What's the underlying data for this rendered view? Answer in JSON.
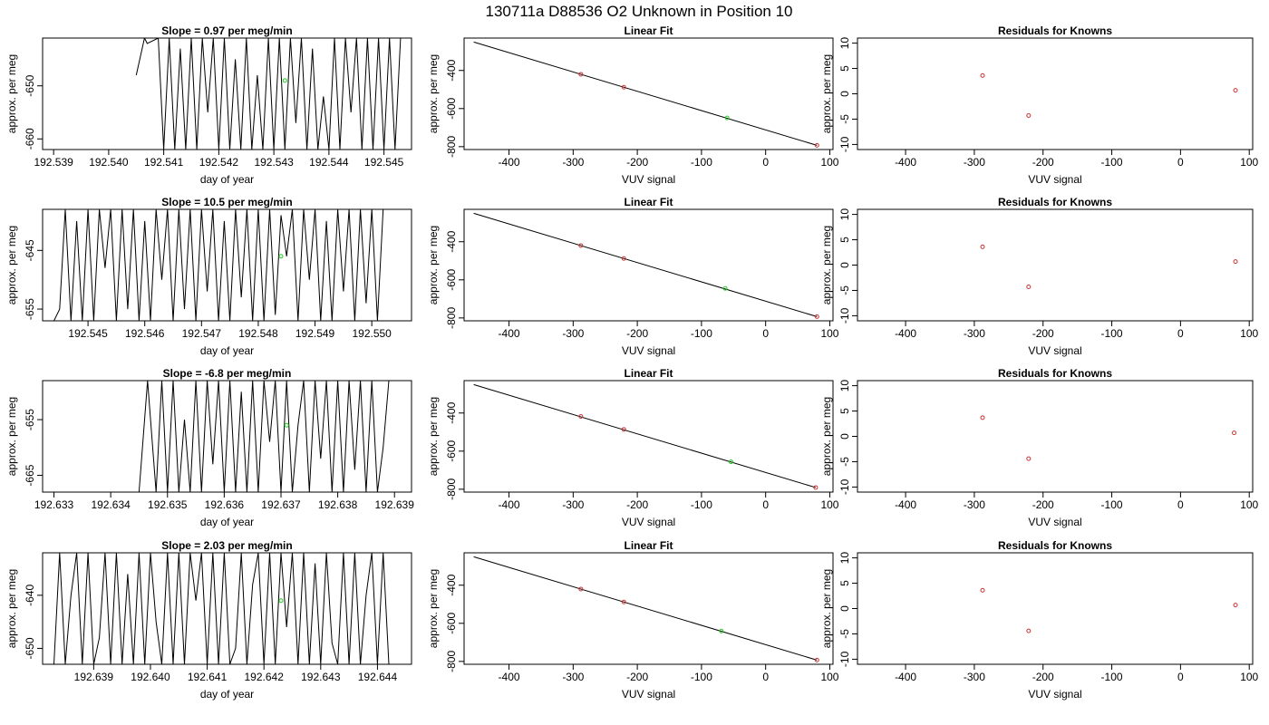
{
  "header": {
    "title": "130711a     D88536   O2 Unknown in Position  10"
  },
  "colors": {
    "trace": "#000000",
    "known_point": "#cc3333",
    "unknown_point": "#22cc22",
    "fit_line": "#000000"
  },
  "chart_data": [
    {
      "type": "line",
      "row": 0,
      "panel": "time-series",
      "title": "Slope =  0.97  per meg/min",
      "xlabel": "day of year",
      "ylabel": "approx. per meg",
      "xlim": [
        192.5388,
        192.5455
      ],
      "ylim": [
        -662,
        -641
      ],
      "xticks": [
        192.539,
        192.54,
        192.541,
        192.542,
        192.543,
        192.544,
        192.545
      ],
      "xtick_labels": [
        "192.539",
        "192.540",
        "192.541",
        "192.542",
        "192.543",
        "192.544",
        "192.545"
      ],
      "yticks": [
        -650,
        -660
      ],
      "ytick_labels": [
        "-650",
        "-660"
      ],
      "trace_x": [
        192.5405,
        192.54065,
        192.5407,
        192.5409,
        192.541,
        192.5411,
        192.5412,
        192.5413,
        192.5414,
        192.5415,
        192.5416,
        192.5417,
        192.5418,
        192.5419,
        192.542,
        192.5421,
        192.5422,
        192.5423,
        192.5424,
        192.5425,
        192.5426,
        192.5427,
        192.5428,
        192.5429,
        192.543,
        192.5431,
        192.5432,
        192.5433,
        192.5434,
        192.5435,
        192.5436,
        192.5437,
        192.5438,
        192.5439,
        192.544,
        192.5441,
        192.5442,
        192.5443,
        192.5444,
        192.5445,
        192.5446,
        192.5447,
        192.5448,
        192.5449,
        192.545,
        192.5451,
        192.5452,
        192.5453
      ],
      "trace_y": [
        -648,
        -641,
        -642,
        -641,
        -662,
        -641,
        -662,
        -643,
        -662,
        -641,
        -662,
        -641,
        -655,
        -641,
        -662,
        -641,
        -662,
        -645,
        -662,
        -641,
        -662,
        -648,
        -662,
        -641,
        -662,
        -641,
        -662,
        -641,
        -657,
        -641,
        -662,
        -643,
        -662,
        -652,
        -662,
        -641,
        -662,
        -641,
        -655,
        -641,
        -662,
        -641,
        -662,
        -641,
        -662,
        -641,
        -662,
        -641
      ],
      "marker": {
        "x": 192.5432,
        "y": -649
      }
    },
    {
      "type": "line",
      "row": 0,
      "panel": "linear-fit",
      "title": "Linear Fit",
      "xlabel": "VUV signal",
      "ylabel": "approx. per meg",
      "xlim": [
        -470,
        105
      ],
      "ylim": [
        -815,
        -230
      ],
      "xticks": [
        -400,
        -300,
        -200,
        -100,
        0,
        100
      ],
      "xtick_labels": [
        "-400",
        "-300",
        "-200",
        "-100",
        "0",
        "100"
      ],
      "yticks": [
        -400,
        -600,
        -800
      ],
      "ytick_labels": [
        "-400",
        "-600",
        "-800"
      ],
      "fit_line": {
        "x": [
          -455,
          80
        ],
        "y": [
          -251,
          -793
        ]
      },
      "knowns": [
        {
          "x": -288,
          "y": -420
        },
        {
          "x": -221,
          "y": -488
        },
        {
          "x": 80,
          "y": -793
        }
      ],
      "unknown": {
        "x": -60,
        "y": -649
      }
    },
    {
      "type": "scatter",
      "row": 0,
      "panel": "residuals",
      "title": "Residuals for Knowns",
      "xlabel": "VUV signal",
      "ylabel": "approx. per meg",
      "xlim": [
        -470,
        105
      ],
      "ylim": [
        -11,
        11
      ],
      "xticks": [
        -400,
        -300,
        -200,
        -100,
        0,
        100
      ],
      "xtick_labels": [
        "-400",
        "-300",
        "-200",
        "-100",
        "0",
        "100"
      ],
      "yticks": [
        10,
        5,
        0,
        -5,
        -10
      ],
      "ytick_labels": [
        "10",
        "5",
        "0",
        "-5",
        "-10"
      ],
      "knowns": [
        {
          "x": -288,
          "y": 3.6
        },
        {
          "x": -221,
          "y": -4.3
        },
        {
          "x": 80,
          "y": 0.7
        }
      ]
    },
    {
      "type": "line",
      "row": 1,
      "panel": "time-series",
      "title": "Slope =  10.5  per meg/min",
      "xlabel": "day of year",
      "ylabel": "approx. per meg",
      "xlim": [
        192.5442,
        192.5507
      ],
      "ylim": [
        -657,
        -638
      ],
      "xticks": [
        192.545,
        192.546,
        192.547,
        192.548,
        192.549,
        192.55
      ],
      "xtick_labels": [
        "192.545",
        "192.546",
        "192.547",
        "192.548",
        "192.549",
        "192.550"
      ],
      "yticks": [
        -645,
        -655
      ],
      "ytick_labels": [
        "-645",
        "-655"
      ],
      "trace_x": [
        192.5444,
        192.5445,
        192.5446,
        192.5447,
        192.5448,
        192.5449,
        192.545,
        192.5451,
        192.5452,
        192.5453,
        192.5454,
        192.5455,
        192.5456,
        192.5457,
        192.5458,
        192.5459,
        192.546,
        192.5461,
        192.5462,
        192.5463,
        192.5464,
        192.5465,
        192.5466,
        192.5467,
        192.5468,
        192.5469,
        192.547,
        192.5471,
        192.5472,
        192.5473,
        192.5474,
        192.5475,
        192.5476,
        192.5477,
        192.5478,
        192.5479,
        192.548,
        192.5481,
        192.5482,
        192.5483,
        192.5484,
        192.5485,
        192.5486,
        192.5487,
        192.5488,
        192.5489,
        192.549,
        192.5491,
        192.5492,
        192.5493,
        192.5494,
        192.5495,
        192.5496,
        192.5497,
        192.5498,
        192.5499,
        192.55,
        192.5501,
        192.5502
      ],
      "trace_y": [
        -657,
        -655,
        -638,
        -657,
        -640,
        -657,
        -638,
        -657,
        -638,
        -648,
        -638,
        -657,
        -638,
        -655,
        -638,
        -657,
        -640,
        -657,
        -638,
        -650,
        -638,
        -657,
        -638,
        -655,
        -638,
        -657,
        -638,
        -652,
        -638,
        -657,
        -640,
        -657,
        -638,
        -653,
        -638,
        -657,
        -638,
        -657,
        -638,
        -656,
        -639,
        -646,
        -638,
        -657,
        -638,
        -650,
        -638,
        -657,
        -640,
        -657,
        -638,
        -652,
        -638,
        -657,
        -638,
        -654,
        -638,
        -657,
        -638
      ],
      "marker": {
        "x": 192.5484,
        "y": -646
      }
    },
    {
      "type": "line",
      "row": 1,
      "panel": "linear-fit",
      "title": "Linear Fit",
      "xlabel": "VUV signal",
      "ylabel": "approx. per meg",
      "xlim": [
        -470,
        105
      ],
      "ylim": [
        -815,
        -230
      ],
      "xticks": [
        -400,
        -300,
        -200,
        -100,
        0,
        100
      ],
      "xtick_labels": [
        "-400",
        "-300",
        "-200",
        "-100",
        "0",
        "100"
      ],
      "yticks": [
        -400,
        -600,
        -800
      ],
      "ytick_labels": [
        "-400",
        "-600",
        "-800"
      ],
      "fit_line": {
        "x": [
          -455,
          80
        ],
        "y": [
          -251,
          -793
        ]
      },
      "knowns": [
        {
          "x": -288,
          "y": -420
        },
        {
          "x": -221,
          "y": -488
        },
        {
          "x": 80,
          "y": -793
        }
      ],
      "unknown": {
        "x": -63,
        "y": -645
      }
    },
    {
      "type": "scatter",
      "row": 1,
      "panel": "residuals",
      "title": "Residuals for Knowns",
      "xlabel": "VUV signal",
      "ylabel": "approx. per meg",
      "xlim": [
        -470,
        105
      ],
      "ylim": [
        -11,
        11
      ],
      "xticks": [
        -400,
        -300,
        -200,
        -100,
        0,
        100
      ],
      "xtick_labels": [
        "-400",
        "-300",
        "-200",
        "-100",
        "0",
        "100"
      ],
      "yticks": [
        10,
        5,
        0,
        -5,
        -10
      ],
      "ytick_labels": [
        "10",
        "5",
        "0",
        "-5",
        "-10"
      ],
      "knowns": [
        {
          "x": -288,
          "y": 3.6
        },
        {
          "x": -221,
          "y": -4.3
        },
        {
          "x": 80,
          "y": 0.7
        }
      ]
    },
    {
      "type": "line",
      "row": 2,
      "panel": "time-series",
      "title": "Slope =  -6.8  per meg/min",
      "xlabel": "day of year",
      "ylabel": "approx. per meg",
      "xlim": [
        192.6328,
        192.6393
      ],
      "ylim": [
        -668,
        -648
      ],
      "xticks": [
        192.633,
        192.634,
        192.635,
        192.636,
        192.637,
        192.638,
        192.639
      ],
      "xtick_labels": [
        "192.633",
        "192.634",
        "192.635",
        "192.636",
        "192.637",
        "192.638",
        "192.639"
      ],
      "yticks": [
        -655,
        -665
      ],
      "ytick_labels": [
        "-655",
        "-665"
      ],
      "trace_x": [
        192.6345,
        192.63465,
        192.6348,
        192.6349,
        192.635,
        192.6351,
        192.6352,
        192.6353,
        192.6354,
        192.6355,
        192.6356,
        192.6357,
        192.6358,
        192.6359,
        192.636,
        192.6361,
        192.6362,
        192.6363,
        192.6364,
        192.6365,
        192.6366,
        192.6367,
        192.6368,
        192.6369,
        192.637,
        192.6371,
        192.6372,
        192.6373,
        192.6374,
        192.6375,
        192.6376,
        192.6377,
        192.6378,
        192.6379,
        192.638,
        192.6381,
        192.6382,
        192.6383,
        192.6384,
        192.6385,
        192.6386,
        192.6387,
        192.6388,
        192.6389
      ],
      "trace_y": [
        -668,
        -648,
        -668,
        -648,
        -668,
        -648,
        -668,
        -655,
        -668,
        -648,
        -668,
        -648,
        -663,
        -648,
        -668,
        -648,
        -668,
        -650,
        -668,
        -648,
        -668,
        -648,
        -659,
        -648,
        -668,
        -648,
        -668,
        -656,
        -648,
        -668,
        -648,
        -662,
        -648,
        -668,
        -648,
        -668,
        -648,
        -664,
        -648,
        -668,
        -648,
        -668,
        -660,
        -648
      ],
      "marker": {
        "x": 192.6371,
        "y": -656
      }
    },
    {
      "type": "line",
      "row": 2,
      "panel": "linear-fit",
      "title": "Linear Fit",
      "xlabel": "VUV signal",
      "ylabel": "approx. per meg",
      "xlim": [
        -470,
        105
      ],
      "ylim": [
        -815,
        -230
      ],
      "xticks": [
        -400,
        -300,
        -200,
        -100,
        0,
        100
      ],
      "xtick_labels": [
        "-400",
        "-300",
        "-200",
        "-100",
        "0",
        "100"
      ],
      "yticks": [
        -400,
        -600,
        -800
      ],
      "ytick_labels": [
        "-400",
        "-600",
        "-800"
      ],
      "fit_line": {
        "x": [
          -455,
          78
        ],
        "y": [
          -251,
          -791
        ]
      },
      "knowns": [
        {
          "x": -288,
          "y": -418
        },
        {
          "x": -221,
          "y": -486
        },
        {
          "x": 78,
          "y": -791
        }
      ],
      "unknown": {
        "x": -54,
        "y": -656
      }
    },
    {
      "type": "scatter",
      "row": 2,
      "panel": "residuals",
      "title": "Residuals for Knowns",
      "xlabel": "VUV signal",
      "ylabel": "approx. per meg",
      "xlim": [
        -470,
        105
      ],
      "ylim": [
        -11,
        11
      ],
      "xticks": [
        -400,
        -300,
        -200,
        -100,
        0,
        100
      ],
      "xtick_labels": [
        "-400",
        "-300",
        "-200",
        "-100",
        "0",
        "100"
      ],
      "yticks": [
        10,
        5,
        0,
        -5,
        -10
      ],
      "ytick_labels": [
        "10",
        "5",
        "0",
        "-5",
        "-10"
      ],
      "knowns": [
        {
          "x": -288,
          "y": 3.7
        },
        {
          "x": -221,
          "y": -4.4
        },
        {
          "x": 78,
          "y": 0.7
        }
      ]
    },
    {
      "type": "line",
      "row": 3,
      "panel": "time-series",
      "title": "Slope =  2.03  per meg/min",
      "xlabel": "day of year",
      "ylabel": "approx. per meg",
      "xlim": [
        192.6381,
        192.6446
      ],
      "ylim": [
        -653,
        -632
      ],
      "xticks": [
        192.639,
        192.64,
        192.641,
        192.642,
        192.643,
        192.644
      ],
      "xtick_labels": [
        "192.639",
        "192.640",
        "192.641",
        "192.642",
        "192.643",
        "192.644"
      ],
      "yticks": [
        -640,
        -650
      ],
      "ytick_labels": [
        "-640",
        "-650"
      ],
      "trace_x": [
        192.6383,
        192.6384,
        192.6385,
        192.6386,
        192.6387,
        192.6388,
        192.6389,
        192.639,
        192.6391,
        192.6392,
        192.6393,
        192.6394,
        192.6395,
        192.6396,
        192.6397,
        192.6398,
        192.6399,
        192.64,
        192.6401,
        192.6402,
        192.6403,
        192.6404,
        192.6405,
        192.6406,
        192.6407,
        192.6408,
        192.6409,
        192.641,
        192.6411,
        192.6412,
        192.6413,
        192.6414,
        192.6415,
        192.6416,
        192.6417,
        192.6418,
        192.6419,
        192.642,
        192.6421,
        192.6422,
        192.6423,
        192.6424,
        192.6425,
        192.6426,
        192.6427,
        192.6428,
        192.6429,
        192.643,
        192.6431,
        192.6432,
        192.6433,
        192.6434,
        192.6435,
        192.6436,
        192.6437,
        192.6438,
        192.6439,
        192.644,
        192.6441,
        192.6442
      ],
      "trace_y": [
        -653,
        -632,
        -653,
        -640,
        -632,
        -653,
        -632,
        -653,
        -648,
        -632,
        -653,
        -632,
        -653,
        -636,
        -653,
        -632,
        -653,
        -632,
        -645,
        -653,
        -632,
        -653,
        -632,
        -653,
        -632,
        -641,
        -632,
        -653,
        -632,
        -653,
        -632,
        -653,
        -650,
        -632,
        -653,
        -638,
        -632,
        -653,
        -632,
        -653,
        -632,
        -646,
        -632,
        -653,
        -632,
        -653,
        -634,
        -653,
        -632,
        -649,
        -653,
        -632,
        -653,
        -632,
        -653,
        -640,
        -632,
        -653,
        -632,
        -653
      ],
      "marker": {
        "x": 192.6423,
        "y": -641
      }
    },
    {
      "type": "line",
      "row": 3,
      "panel": "linear-fit",
      "title": "Linear Fit",
      "xlabel": "VUV signal",
      "ylabel": "approx. per meg",
      "xlim": [
        -470,
        105
      ],
      "ylim": [
        -815,
        -230
      ],
      "xticks": [
        -400,
        -300,
        -200,
        -100,
        0,
        100
      ],
      "xtick_labels": [
        "-400",
        "-300",
        "-200",
        "-100",
        "0",
        "100"
      ],
      "yticks": [
        -400,
        -600,
        -800
      ],
      "ytick_labels": [
        "-400",
        "-600",
        "-800"
      ],
      "fit_line": {
        "x": [
          -455,
          80
        ],
        "y": [
          -251,
          -793
        ]
      },
      "knowns": [
        {
          "x": -288,
          "y": -420
        },
        {
          "x": -221,
          "y": -488
        },
        {
          "x": 80,
          "y": -793
        }
      ],
      "unknown": {
        "x": -69,
        "y": -641
      }
    },
    {
      "type": "scatter",
      "row": 3,
      "panel": "residuals",
      "title": "Residuals for Knowns",
      "xlabel": "VUV signal",
      "ylabel": "approx. per meg",
      "xlim": [
        -470,
        105
      ],
      "ylim": [
        -11,
        11
      ],
      "xticks": [
        -400,
        -300,
        -200,
        -100,
        0,
        100
      ],
      "xtick_labels": [
        "-400",
        "-300",
        "-200",
        "-100",
        "0",
        "100"
      ],
      "yticks": [
        10,
        5,
        0,
        -5,
        -10
      ],
      "ytick_labels": [
        "10",
        "5",
        "0",
        "-5",
        "-10"
      ],
      "knowns": [
        {
          "x": -288,
          "y": 3.6
        },
        {
          "x": -221,
          "y": -4.4
        },
        {
          "x": 80,
          "y": 0.7
        }
      ]
    }
  ]
}
